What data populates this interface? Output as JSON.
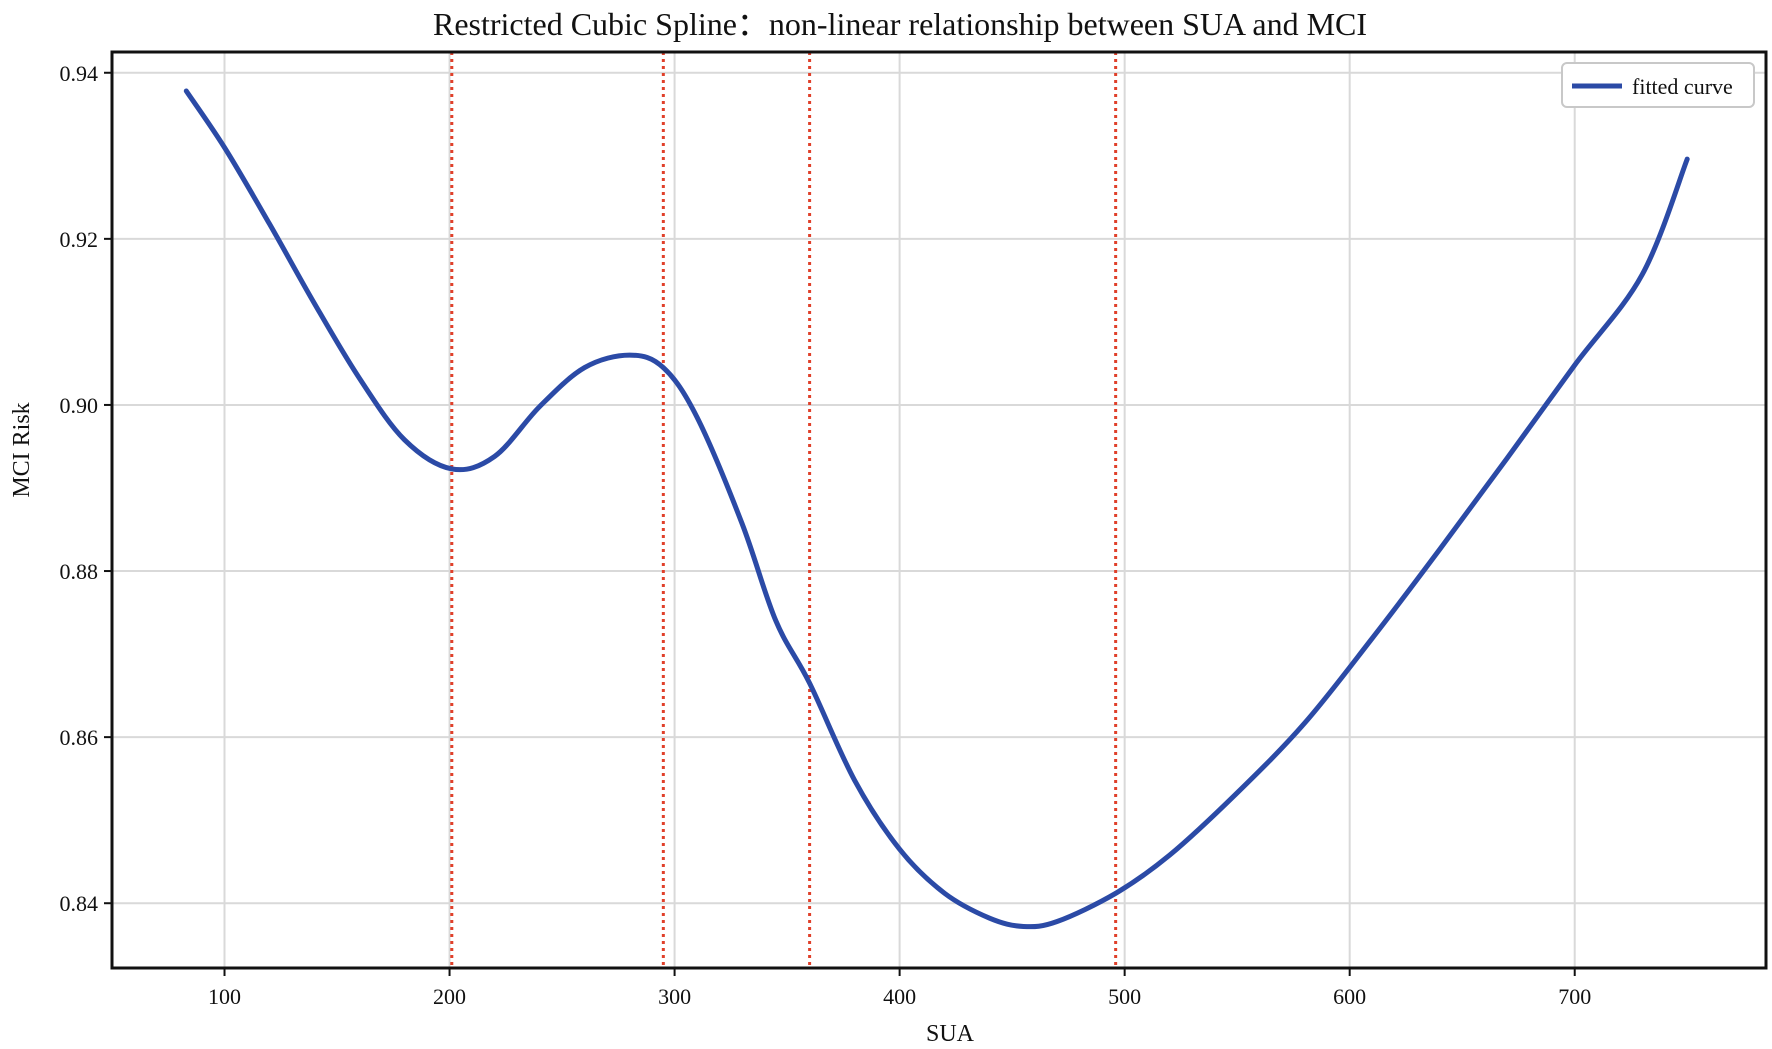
{
  "chart_data": {
    "type": "line",
    "title": "Restricted Cubic Spline：non-linear relationship between SUA and MCI",
    "xlabel": "SUA",
    "ylabel": "MCI Risk",
    "xlim": [
      50,
      785
    ],
    "ylim": [
      0.8322,
      0.9425
    ],
    "xticks": [
      100,
      200,
      300,
      400,
      500,
      600,
      700
    ],
    "yticks": [
      0.84,
      0.86,
      0.88,
      0.9,
      0.92,
      0.94
    ],
    "xtick_labels": [
      "100",
      "200",
      "300",
      "400",
      "500",
      "600",
      "700"
    ],
    "ytick_labels": [
      "0.84",
      "0.86",
      "0.88",
      "0.90",
      "0.92",
      "0.94"
    ],
    "grid": true,
    "legend_position": "top-right",
    "knots": [
      201,
      295,
      360,
      496
    ],
    "series": [
      {
        "name": "fitted curve",
        "color": "#2b4aa6",
        "x": [
          83,
          100,
          120,
          140,
          160,
          180,
          201,
          220,
          240,
          260,
          280,
          295,
          310,
          330,
          345,
          360,
          380,
          400,
          420,
          440,
          455,
          470,
          496,
          520,
          550,
          580,
          610,
          640,
          670,
          700,
          730,
          750
        ],
        "y": [
          0.9378,
          0.931,
          0.9218,
          0.9122,
          0.9032,
          0.8958,
          0.8923,
          0.8938,
          0.8998,
          0.9045,
          0.906,
          0.9045,
          0.8985,
          0.8857,
          0.874,
          0.8665,
          0.8548,
          0.8465,
          0.8412,
          0.8382,
          0.8372,
          0.8378,
          0.8412,
          0.8458,
          0.8533,
          0.8617,
          0.8719,
          0.8826,
          0.8936,
          0.9048,
          0.9157,
          0.9296
        ]
      }
    ],
    "reference_lines": {
      "color": "#e0402a",
      "style": "dotted"
    }
  }
}
